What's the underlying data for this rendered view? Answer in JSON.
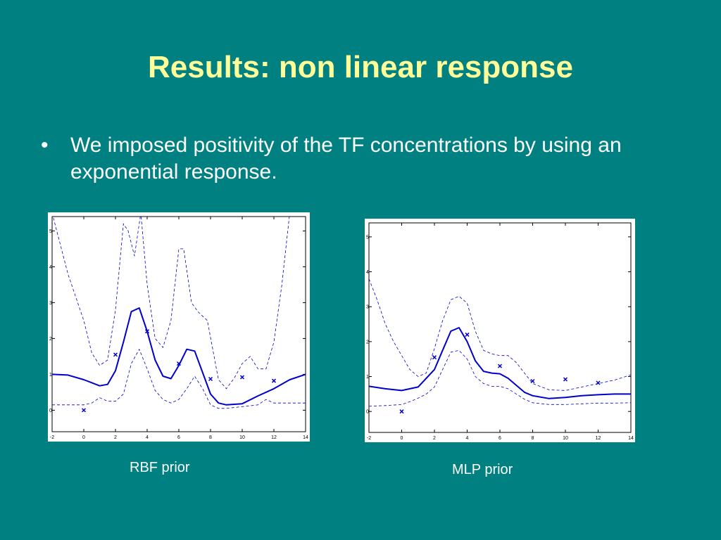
{
  "slide": {
    "title": "Results: non linear response",
    "bullets": [
      "We imposed positivity of the TF concentrations by using an exponential response."
    ],
    "bullet_marker": "•",
    "background_color": "#008080",
    "title_color": "#ffff99"
  },
  "chart_data": [
    {
      "type": "line",
      "caption": "RBF prior",
      "xlim": [
        -2,
        14
      ],
      "ylim": [
        -0.6,
        5.4
      ],
      "xticks": [
        -2,
        0,
        2,
        4,
        6,
        8,
        10,
        12,
        14
      ],
      "yticks": [
        0,
        1,
        2,
        3,
        4,
        5
      ],
      "grid": false,
      "colors": {
        "line": "#0000cc",
        "marker": "#0000cc"
      },
      "observations": {
        "x": [
          0,
          2,
          4,
          6,
          8,
          10,
          12
        ],
        "y": [
          0.0,
          1.55,
          2.2,
          1.3,
          0.87,
          0.92,
          0.82
        ]
      },
      "series": [
        {
          "style": "solid",
          "x": [
            -2,
            -1,
            0,
            1,
            1.5,
            2,
            2.5,
            3,
            3.5,
            4,
            4.5,
            5,
            5.5,
            6,
            6.5,
            7,
            7.5,
            8,
            8.5,
            9,
            10,
            11,
            12,
            13,
            14
          ],
          "y": [
            1.0,
            0.98,
            0.85,
            0.68,
            0.72,
            1.1,
            1.9,
            2.75,
            2.85,
            2.2,
            1.4,
            0.95,
            0.88,
            1.25,
            1.7,
            1.65,
            1.05,
            0.45,
            0.2,
            0.15,
            0.18,
            0.4,
            0.6,
            0.85,
            1.0
          ]
        },
        {
          "style": "dashed",
          "x": [
            -2,
            -1,
            0,
            0.5,
            1,
            1.5,
            2,
            2.5,
            2.8,
            3.2,
            3.6,
            4,
            4.5,
            5,
            5.5,
            6,
            6.3,
            6.8,
            7.2,
            7.8,
            8.5,
            9,
            9.5,
            10,
            10.5,
            11,
            11.5,
            12,
            12.5,
            13,
            13.5,
            14
          ],
          "y": [
            5.5,
            3.8,
            2.5,
            1.6,
            1.25,
            1.4,
            2.8,
            5.2,
            5.0,
            4.3,
            5.5,
            3.5,
            2.0,
            1.75,
            2.5,
            4.5,
            4.5,
            3.0,
            2.75,
            2.5,
            0.85,
            0.6,
            0.9,
            1.3,
            1.5,
            1.15,
            1.15,
            1.9,
            3.5,
            5.5,
            5.6,
            5.6
          ]
        },
        {
          "style": "dashed",
          "x": [
            -2,
            -1,
            0,
            0.5,
            1,
            1.5,
            2,
            2.5,
            3,
            3.5,
            4,
            4.5,
            5,
            5.5,
            6,
            6.5,
            7,
            7.5,
            8,
            8.5,
            9,
            10,
            11,
            11.5,
            12,
            13,
            14
          ],
          "y": [
            0.15,
            0.15,
            0.15,
            0.2,
            0.35,
            0.25,
            0.25,
            0.45,
            1.3,
            1.7,
            1.15,
            0.55,
            0.3,
            0.2,
            0.3,
            0.6,
            0.95,
            0.6,
            0.15,
            0.05,
            0.05,
            0.1,
            0.15,
            0.3,
            0.2,
            0.2,
            0.2
          ]
        }
      ]
    },
    {
      "type": "line",
      "caption": "MLP prior",
      "xlim": [
        -2,
        14
      ],
      "ylim": [
        -0.6,
        5.4
      ],
      "xticks": [
        -2,
        0,
        2,
        4,
        6,
        8,
        10,
        12,
        14
      ],
      "yticks": [
        0,
        1,
        2,
        3,
        4,
        5
      ],
      "grid": false,
      "colors": {
        "line": "#0000cc",
        "marker": "#0000cc"
      },
      "observations": {
        "x": [
          0,
          2,
          4,
          6,
          8,
          10,
          12
        ],
        "y": [
          0.0,
          1.55,
          2.2,
          1.3,
          0.87,
          0.92,
          0.82
        ]
      },
      "series": [
        {
          "style": "solid",
          "x": [
            -2,
            -1,
            0,
            1,
            2,
            2.5,
            3,
            3.5,
            4,
            4.5,
            5,
            5.5,
            6,
            6.5,
            7,
            7.5,
            8,
            9,
            10,
            11,
            12,
            13,
            14
          ],
          "y": [
            0.72,
            0.65,
            0.6,
            0.7,
            1.2,
            1.75,
            2.3,
            2.4,
            2.0,
            1.45,
            1.15,
            1.1,
            1.08,
            0.95,
            0.75,
            0.55,
            0.45,
            0.37,
            0.4,
            0.45,
            0.48,
            0.5,
            0.5
          ]
        },
        {
          "style": "dashed",
          "x": [
            -2,
            -1.5,
            -1,
            -0.5,
            0,
            0.5,
            1,
            1.5,
            2,
            2.5,
            3,
            3.5,
            4,
            4.5,
            5,
            5.5,
            6,
            6.5,
            7,
            7.5,
            8,
            9,
            10,
            11,
            12,
            13,
            14
          ],
          "y": [
            3.8,
            3.2,
            2.5,
            2.0,
            1.6,
            1.2,
            1.0,
            1.1,
            1.8,
            2.6,
            3.2,
            3.3,
            3.1,
            2.3,
            1.75,
            1.65,
            1.6,
            1.6,
            1.4,
            1.1,
            0.8,
            0.62,
            0.6,
            0.7,
            0.8,
            0.9,
            1.05
          ]
        },
        {
          "style": "dashed",
          "x": [
            -2,
            -1,
            0,
            0.5,
            1,
            1.5,
            2,
            2.5,
            3,
            3.5,
            4,
            4.5,
            5,
            5.5,
            6,
            6.5,
            7,
            7.5,
            8,
            9,
            10,
            11,
            12,
            13,
            14
          ],
          "y": [
            0.15,
            0.17,
            0.2,
            0.28,
            0.38,
            0.5,
            0.7,
            1.2,
            1.7,
            1.75,
            1.5,
            1.0,
            0.8,
            0.72,
            0.72,
            0.65,
            0.5,
            0.35,
            0.25,
            0.2,
            0.2,
            0.22,
            0.24,
            0.24,
            0.25
          ]
        }
      ]
    }
  ]
}
